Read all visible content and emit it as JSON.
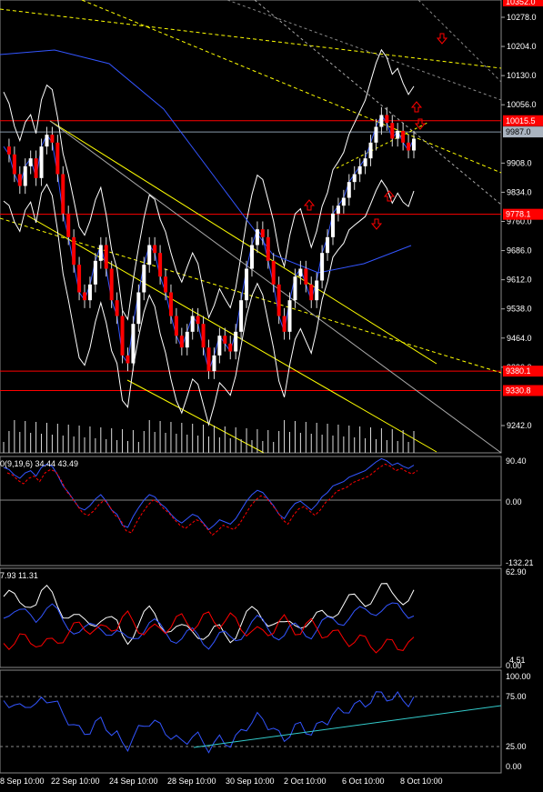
{
  "colors": {
    "bg": "#000000",
    "bull": "#ffffff",
    "bear": "#ff0000",
    "hline": "#ff0000",
    "dash": "#ffff00",
    "channel": "#ffff00",
    "blue": "#3355ff",
    "cyan": "#33cccc"
  },
  "price_axis": {
    "labels": [
      "10278.0",
      "10204.0",
      "10130.0",
      "10056.0",
      "9908.0",
      "9834.0",
      "9760.0",
      "9686.0",
      "9612.0",
      "9538.0",
      "9464.0",
      "9390.0",
      "9242.0"
    ],
    "top_price": "10352.0",
    "current_price": "9987.0",
    "hlines": [
      "10015.5",
      "9778.1",
      "9380.1",
      "9330.8"
    ]
  },
  "indicators": {
    "macd": {
      "label": "0(9,19,6) 34.44 43.49",
      "top": "90.40",
      "zero": "0.00",
      "bottom": "-132.21"
    },
    "dmi": {
      "label": "7.93 11.31",
      "top": "62.90",
      "bottom": "0.00",
      "low_mark": "4.51"
    },
    "rsi": {
      "top": "100.00",
      "upper": "75.00",
      "lower": "25.00",
      "bottom": "0.00"
    }
  },
  "time_axis": [
    "8 Sep 10:00",
    "22 Sep 10:00",
    "24 Sep 10:00",
    "28 Sep 10:00",
    "30 Sep 10:00",
    "2 Oct 10:00",
    "6 Oct 10:00",
    "8 Oct 10:00"
  ],
  "icons": [
    "arrow-up-icon",
    "arrow-down-icon"
  ]
}
